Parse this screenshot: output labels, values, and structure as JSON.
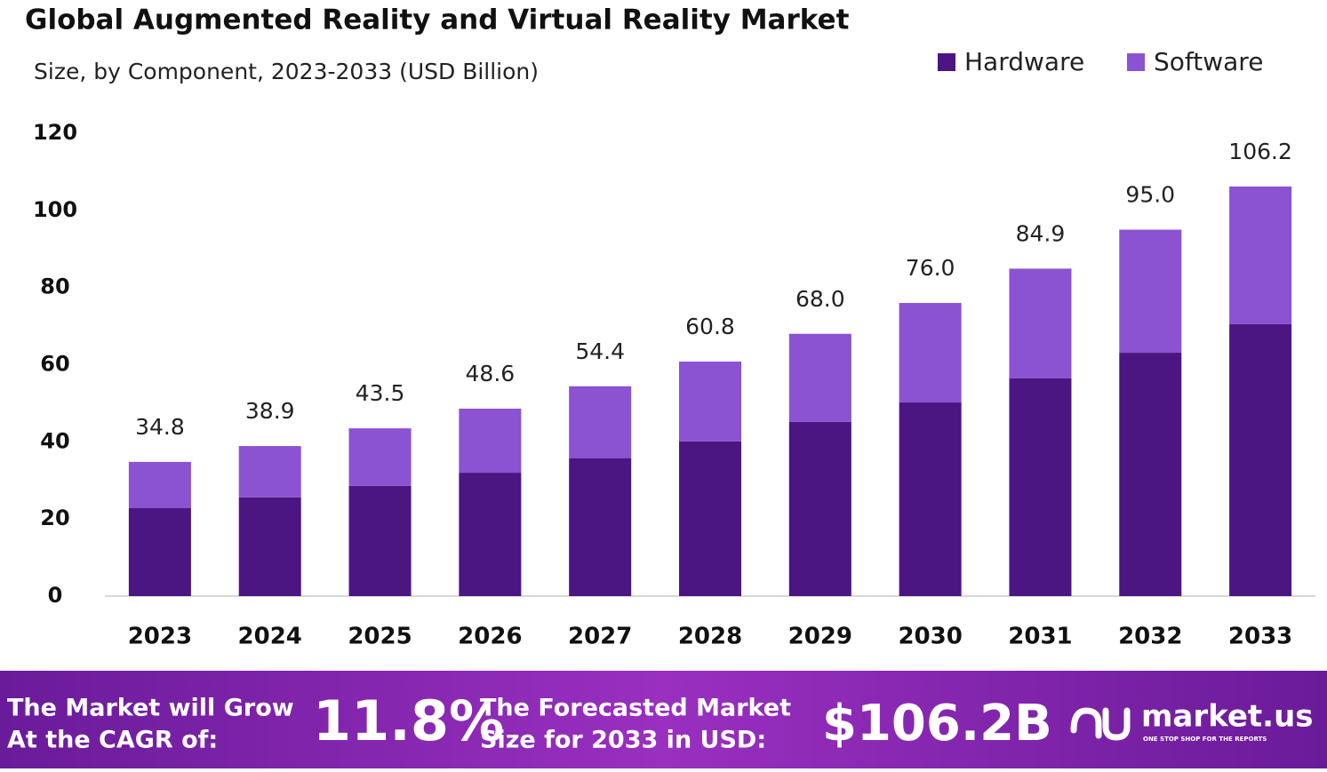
{
  "chart_data": {
    "type": "stacked-bar",
    "title": "Global Augmented Reality and Virtual Reality Market",
    "subtitle": "Size, by Component, 2023-2033 (USD Billion)",
    "categories": [
      "2023",
      "2024",
      "2025",
      "2026",
      "2027",
      "2028",
      "2029",
      "2030",
      "2031",
      "2032",
      "2033"
    ],
    "series": [
      {
        "name": "Hardware",
        "color": "#4b1582",
        "values": [
          22.8,
          25.6,
          28.6,
          32.0,
          35.7,
          40.1,
          45.2,
          50.2,
          56.5,
          63.1,
          70.5
        ]
      },
      {
        "name": "Software",
        "color": "#8b52d1",
        "values": [
          12.0,
          13.3,
          14.9,
          16.6,
          18.7,
          20.7,
          22.8,
          25.8,
          28.4,
          31.9,
          35.7
        ]
      }
    ],
    "totals": [
      34.8,
      38.9,
      43.5,
      48.6,
      54.4,
      60.8,
      68.0,
      76.0,
      84.9,
      95.0,
      106.2
    ],
    "total_labels": [
      "34.8",
      "38.9",
      "43.5",
      "48.6",
      "54.4",
      "60.8",
      "68.0",
      "76.0",
      "84.9",
      "95.0",
      "106.2"
    ],
    "ylim": [
      0,
      120
    ],
    "yticks": [
      0,
      20,
      40,
      60,
      80,
      100,
      120
    ],
    "grid": false,
    "legend": "top-right"
  },
  "footer": {
    "cagr_text": [
      "The Market will Grow",
      "At the CAGR of:"
    ],
    "cagr_value": "11.8%",
    "forecast_text": [
      "The Forecasted Market",
      "Size for 2033 in USD:"
    ],
    "forecast_value": "$106.2B",
    "brand": "market.us",
    "tagline": "ONE STOP SHOP FOR THE REPORTS"
  }
}
